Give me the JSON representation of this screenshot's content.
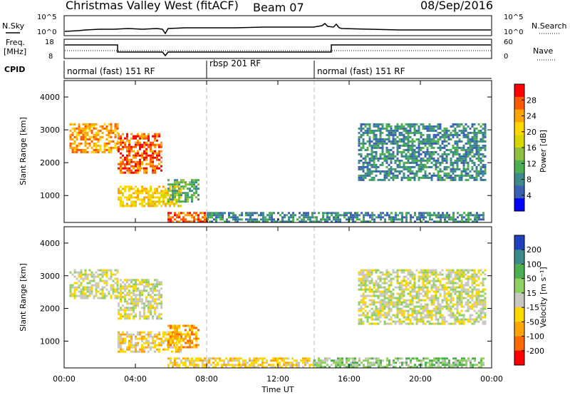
{
  "header": {
    "title": "Christmas Valley West (fitACF)",
    "beam": "Beam 07",
    "date": "08/Sep/2016"
  },
  "top_panels": {
    "nsky_label": "N.Sky",
    "nsky_ticks": [
      "10^5",
      "10^0"
    ],
    "nsearch_label": "N.Search",
    "nsearch_ticks": [
      "10^5",
      "10^0"
    ],
    "freq_label": "Freq.",
    "freq_unit": "[MHz]",
    "freq_ticks": [
      "18",
      "8"
    ],
    "nave_label": "Nave",
    "nave_ticks": [
      "60",
      "0"
    ],
    "cpid_label": "CPID",
    "cpid_segments": [
      {
        "label": "normal (fast) 151 RF",
        "start": 0,
        "end": 8
      },
      {
        "label": "rbsp 201 RF",
        "start": 8,
        "end": 14
      },
      {
        "label": "normal (fast) 151 RF",
        "start": 14,
        "end": 24
      }
    ]
  },
  "x_axis": {
    "label": "Time UT",
    "ticks": [
      "00:00",
      "04:00",
      "08:00",
      "12:00",
      "16:00",
      "20:00",
      "00:00"
    ]
  },
  "colorbars": {
    "power": {
      "label": "Power [dB]",
      "ticks": [
        "28",
        "24",
        "20",
        "16",
        "12",
        "8",
        "4"
      ],
      "colors": [
        "#ff0000",
        "#ff5a00",
        "#ffa500",
        "#ffd700",
        "#d7d700",
        "#90c040",
        "#4caf50",
        "#3c8a8a",
        "#3c60b4",
        "#0000ff"
      ]
    },
    "velocity": {
      "label": "Velocity [m s⁻¹]",
      "ticks": [
        "200",
        "100",
        "50",
        "15",
        "-15",
        "-50",
        "-100",
        "-200"
      ],
      "colors": [
        "#2040c0",
        "#3c8a8a",
        "#4caf50",
        "#90d060",
        "#c8c8c0",
        "#ffd700",
        "#ffa500",
        "#ff6a00",
        "#ff0000"
      ]
    }
  },
  "chart_data": [
    {
      "type": "heatmap",
      "name": "power",
      "xlabel": "",
      "ylabel": "Slant Range [km]",
      "xlim": [
        0,
        24
      ],
      "ylim": [
        180,
        4500
      ],
      "yticks": [
        1000,
        2000,
        3000,
        4000
      ],
      "ytick_labels": [
        "1000",
        "2000",
        "3000",
        "4000"
      ],
      "colorbar_range": [
        0,
        30
      ],
      "regions": [
        {
          "t0": 0.3,
          "t1": 3.0,
          "r0": 2300,
          "r1": 3200,
          "value": 22
        },
        {
          "t0": 3.0,
          "t1": 5.5,
          "r0": 1700,
          "r1": 2900,
          "value": 25
        },
        {
          "t0": 3.0,
          "t1": 6.5,
          "r0": 700,
          "r1": 1300,
          "value": 20
        },
        {
          "t0": 5.8,
          "t1": 7.5,
          "r0": 800,
          "r1": 1500,
          "value": 10
        },
        {
          "t0": 5.8,
          "t1": 8.0,
          "r0": 200,
          "r1": 500,
          "value": 26
        },
        {
          "t0": 8.0,
          "t1": 23.5,
          "r0": 180,
          "r1": 500,
          "value": 8
        },
        {
          "t0": 16.5,
          "t1": 23.7,
          "r0": 1500,
          "r1": 3200,
          "value": 8
        }
      ]
    },
    {
      "type": "heatmap",
      "name": "velocity",
      "xlabel": "Time UT",
      "ylabel": "Slant Range [km]",
      "xlim": [
        0,
        24
      ],
      "ylim": [
        180,
        4500
      ],
      "yticks": [
        1000,
        2000,
        3000,
        4000
      ],
      "ytick_labels": [
        "1000",
        "2000",
        "3000",
        "4000"
      ],
      "colorbar_range": [
        -250,
        250
      ],
      "regions": [
        {
          "t0": 0.3,
          "t1": 3.0,
          "r0": 2300,
          "r1": 3200,
          "value": 0
        },
        {
          "t0": 3.0,
          "t1": 5.5,
          "r0": 1700,
          "r1": 2900,
          "value": 0
        },
        {
          "t0": 3.0,
          "t1": 6.5,
          "r0": 700,
          "r1": 1300,
          "value": -80
        },
        {
          "t0": 5.8,
          "t1": 7.5,
          "r0": 800,
          "r1": 1500,
          "value": -130
        },
        {
          "t0": 5.8,
          "t1": 14.0,
          "r0": 180,
          "r1": 500,
          "value": -60
        },
        {
          "t0": 14.0,
          "t1": 23.5,
          "r0": 180,
          "r1": 500,
          "value": 40
        },
        {
          "t0": 16.5,
          "t1": 23.7,
          "r0": 1500,
          "r1": 3200,
          "value": 0
        }
      ]
    }
  ]
}
